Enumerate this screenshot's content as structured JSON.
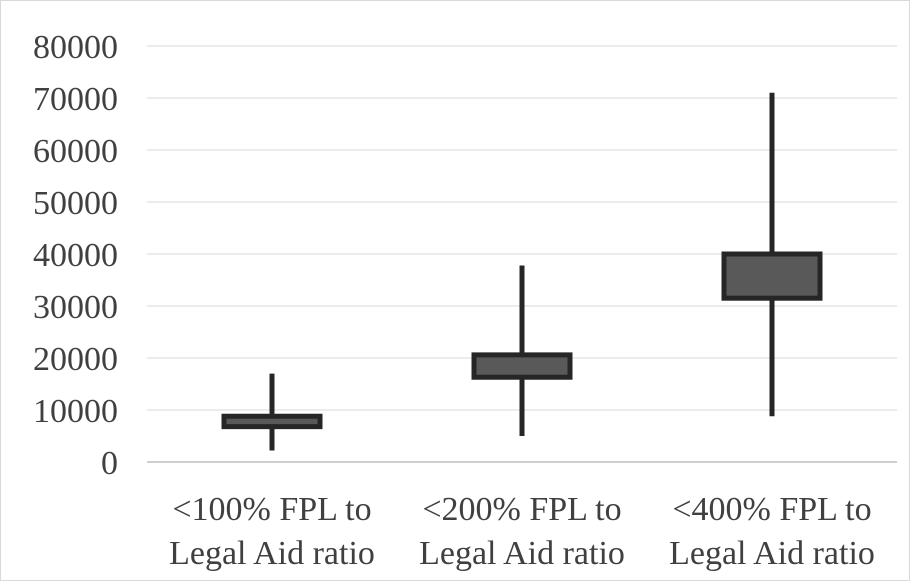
{
  "chart_data": {
    "type": "box",
    "categories": [
      [
        "<100% FPL to",
        "Legal Aid ratio"
      ],
      [
        "<200% FPL to",
        "Legal Aid ratio"
      ],
      [
        "<400% FPL to",
        "Legal Aid ratio"
      ]
    ],
    "boxes": [
      {
        "min": 2200,
        "q1": 6800,
        "q3": 8800,
        "max": 17000
      },
      {
        "min": 5000,
        "q1": 16300,
        "q3": 20600,
        "max": 37800
      },
      {
        "min": 8800,
        "q1": 31500,
        "q3": 40000,
        "max": 71000
      }
    ],
    "ylim": [
      0,
      80000
    ],
    "yticks": [
      0,
      10000,
      20000,
      30000,
      40000,
      50000,
      60000,
      70000,
      80000
    ],
    "grid": true,
    "colors": {
      "box_fill": "#595959",
      "box_stroke": "#262626",
      "whisker": "#262626",
      "gridline": "#d9d9d9",
      "axis": "#bfbfbf"
    }
  }
}
